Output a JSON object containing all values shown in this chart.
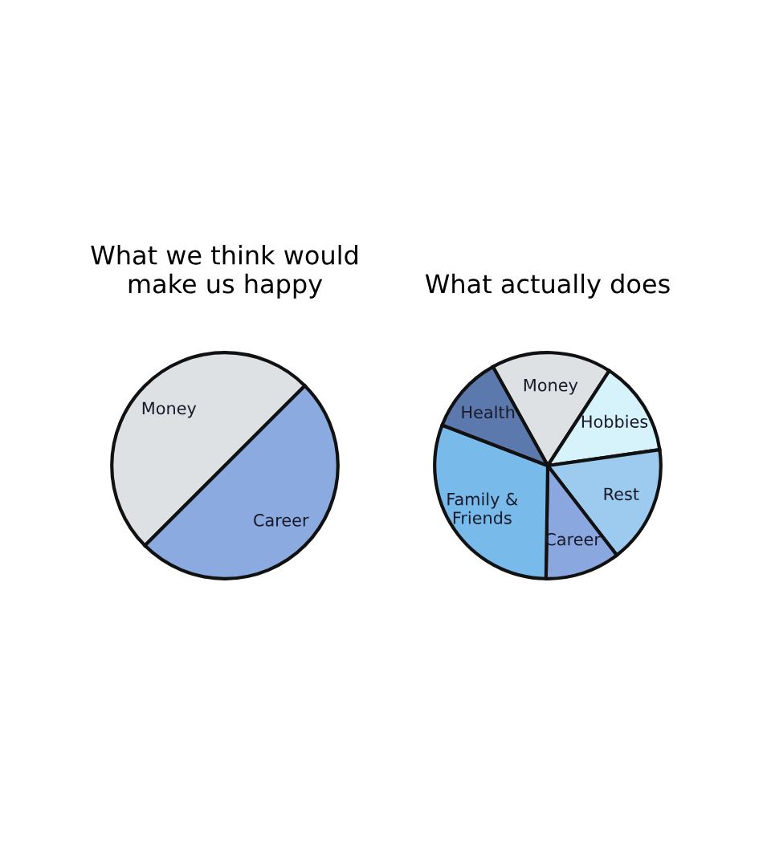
{
  "chart_data": [
    {
      "type": "pie",
      "title": "What we think would\nmake us happy",
      "categories": [
        "Money",
        "Career"
      ],
      "values": [
        50,
        50
      ],
      "colors": [
        "#dde1e4",
        "#8aaae0"
      ]
    },
    {
      "type": "pie",
      "title": "What actually does",
      "categories": [
        "Money",
        "Hobbies",
        "Rest",
        "Career",
        "Family &\nFriends",
        "Health"
      ],
      "values": [
        17.2,
        13.6,
        16.8,
        10.7,
        30.6,
        11.1
      ],
      "colors": [
        "#dde1e4",
        "#d6f3fc",
        "#9ccbef",
        "#8aa8df",
        "#78bbea",
        "#5c79ad"
      ]
    }
  ]
}
